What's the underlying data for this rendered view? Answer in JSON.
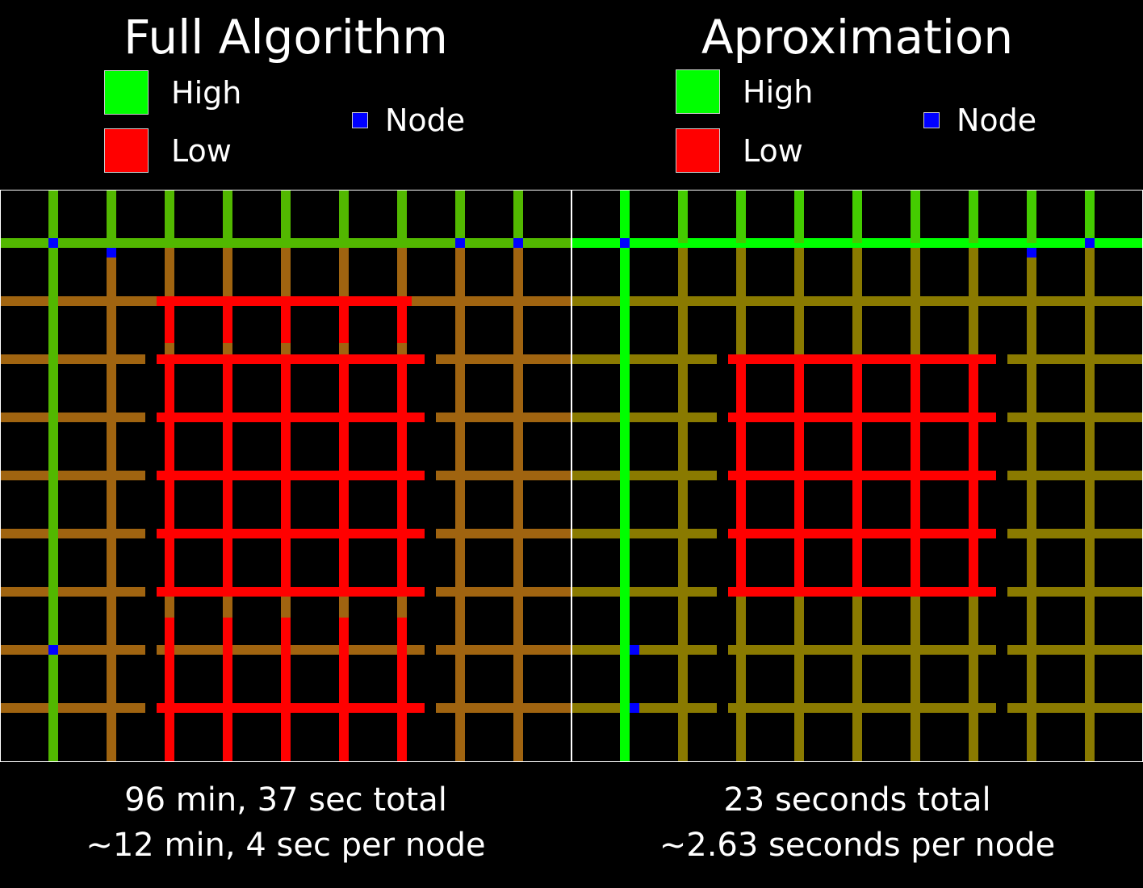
{
  "colors": {
    "high": "#00ff00",
    "low": "#ff0000",
    "node": "#0000ff",
    "mid": "#8a7a00",
    "background": "#000000",
    "border": "#ffffff"
  },
  "legend": {
    "high_label": "High",
    "low_label": "Low",
    "node_label": "Node"
  },
  "panels": [
    {
      "id": "full",
      "title": "Full Algorithm",
      "caption_line1": "96 min, 37 sec total",
      "caption_line2": "~12 min, 4 sec per node"
    },
    {
      "id": "approx",
      "title": "Aproximation",
      "caption_line1": "23 seconds total",
      "caption_line2": "~2.63 seconds per node"
    }
  ]
}
